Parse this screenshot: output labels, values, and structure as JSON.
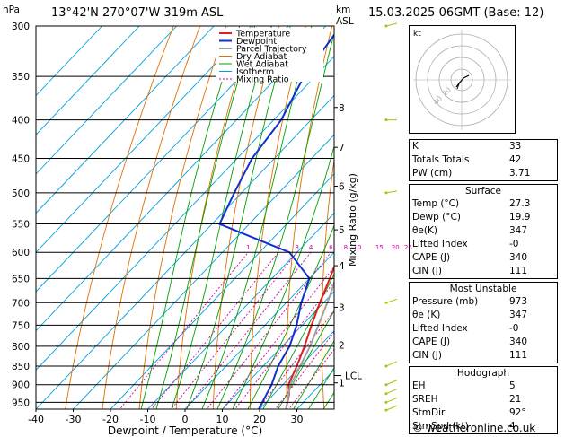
{
  "header": {
    "pressure_unit": "hPa",
    "location": "13°42'N  270°07'W  319m  ASL",
    "km_label": "km",
    "asl_label": "ASL",
    "datetime": "15.03.2025  06GMT  (Base: 12)"
  },
  "legend": [
    "Temperature",
    "Dewpoint",
    "Parcel Trajectory",
    "Dry Adiabat",
    "Wet Adiabat",
    "Isotherm",
    "Mixing Ratio"
  ],
  "colors": {
    "temperature": "#e02020",
    "dewpoint": "#1030d0",
    "parcel": "#a0a0a0",
    "dry_adiabat": "#e07000",
    "wet_adiabat": "#00a000",
    "isotherm": "#00a0e0",
    "mixing_ratio": "#d000a0",
    "wind": "#a0c800"
  },
  "chart_data": {
    "type": "line",
    "title": "",
    "xlabel": "Dewpoint / Temperature (°C)",
    "ylabel_right": "Mixing Ratio (g/kg)",
    "x_ticks": [
      "-40",
      "-30",
      "-20",
      "-10",
      "0",
      "10",
      "20",
      "30"
    ],
    "pressure_ticks": [
      "300",
      "350",
      "400",
      "450",
      "500",
      "550",
      "600",
      "650",
      "700",
      "750",
      "800",
      "850",
      "900",
      "950"
    ],
    "km_ticks": [
      {
        "label": "8",
        "p": 385
      },
      {
        "label": "7",
        "p": 435
      },
      {
        "label": "6",
        "p": 490
      },
      {
        "label": "5",
        "p": 560
      },
      {
        "label": "4",
        "p": 625
      },
      {
        "label": "3",
        "p": 710
      },
      {
        "label": "2",
        "p": 797
      },
      {
        "label": "1",
        "p": 895
      }
    ],
    "lcl_label": "LCL",
    "lcl_p": 875,
    "mixing_ratio_labels": [
      "1",
      "2",
      "3",
      "4",
      "6",
      "8",
      "10",
      "15",
      "20",
      "25"
    ],
    "series": [
      {
        "name": "Temperature",
        "points": [
          [
            973,
            27.3
          ],
          [
            925,
            24
          ],
          [
            900,
            21.5
          ],
          [
            850,
            19
          ],
          [
            800,
            16
          ],
          [
            750,
            12.5
          ],
          [
            700,
            9
          ],
          [
            650,
            5.5
          ],
          [
            600,
            1.5
          ],
          [
            550,
            -3
          ],
          [
            500,
            -8.5
          ],
          [
            450,
            -14.5
          ],
          [
            400,
            -22.5
          ],
          [
            350,
            -32
          ],
          [
            300,
            -43
          ]
        ]
      },
      {
        "name": "Dewpoint",
        "points": [
          [
            973,
            19.9
          ],
          [
            925,
            18
          ],
          [
            900,
            17
          ],
          [
            850,
            14
          ],
          [
            800,
            12
          ],
          [
            750,
            8.5
          ],
          [
            700,
            4
          ],
          [
            650,
            0
          ],
          [
            600,
            -12
          ],
          [
            550,
            -38
          ],
          [
            500,
            -42
          ],
          [
            450,
            -46
          ],
          [
            400,
            -48
          ],
          [
            350,
            -53
          ],
          [
            300,
            -56
          ]
        ]
      },
      {
        "name": "Parcel Trajectory",
        "points": [
          [
            973,
            27.3
          ],
          [
            900,
            22
          ],
          [
            875,
            21
          ],
          [
            800,
            17.5
          ],
          [
            700,
            11
          ],
          [
            600,
            3
          ],
          [
            500,
            -6
          ],
          [
            400,
            -18
          ],
          [
            350,
            -27
          ],
          [
            300,
            -38
          ]
        ]
      }
    ]
  },
  "indices": {
    "rows": [
      {
        "label": "K",
        "value": "33"
      },
      {
        "label": "Totals Totals",
        "value": "42"
      },
      {
        "label": "PW (cm)",
        "value": "3.71"
      }
    ]
  },
  "surface": {
    "title": "Surface",
    "rows": [
      {
        "label": "Temp (°C)",
        "value": "27.3"
      },
      {
        "label": "Dewp (°C)",
        "value": "19.9"
      },
      {
        "label": "θe(K)",
        "value": "347"
      },
      {
        "label": "Lifted Index",
        "value": "-0"
      },
      {
        "label": "CAPE (J)",
        "value": "340"
      },
      {
        "label": "CIN (J)",
        "value": "111"
      }
    ]
  },
  "most_unstable": {
    "title": "Most Unstable",
    "rows": [
      {
        "label": "Pressure (mb)",
        "value": "973"
      },
      {
        "label": "θe (K)",
        "value": "347"
      },
      {
        "label": "Lifted Index",
        "value": "-0"
      },
      {
        "label": "CAPE (J)",
        "value": "340"
      },
      {
        "label": "CIN (J)",
        "value": "111"
      }
    ]
  },
  "hodograph": {
    "title": "Hodograph",
    "rows": [
      {
        "label": "EH",
        "value": "5"
      },
      {
        "label": "SREH",
        "value": "21"
      },
      {
        "label": "StmDir",
        "value": "92°"
      },
      {
        "label": "StmSpd (kt)",
        "value": "4"
      }
    ]
  },
  "hodo_plot": {
    "label": "kt",
    "ring_labels": [
      "20",
      "40"
    ]
  },
  "copyright": "© weatheronline.co.uk"
}
